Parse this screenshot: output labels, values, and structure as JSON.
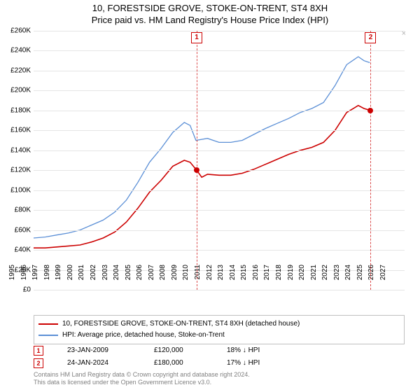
{
  "title": {
    "line1": "10, FORESTSIDE GROVE, STOKE-ON-TRENT, ST4 8XH",
    "line2": "Price paid vs. HM Land Registry's House Price Index (HPI)"
  },
  "chart": {
    "type": "line",
    "background_color": "#ffffff",
    "grid_color": "#e5e5e5",
    "axis_color": "#b0b0b0",
    "label_fontsize": 10,
    "ylim": [
      0,
      260000
    ],
    "ytick_step": 20000,
    "yticks": [
      "£0",
      "£20K",
      "£40K",
      "£60K",
      "£80K",
      "£100K",
      "£120K",
      "£140K",
      "£160K",
      "£180K",
      "£200K",
      "£220K",
      "£240K",
      "£260K"
    ],
    "xlim": [
      1995,
      2027
    ],
    "xticks": [
      1995,
      1996,
      1997,
      1998,
      1999,
      2000,
      2001,
      2002,
      2003,
      2004,
      2005,
      2006,
      2007,
      2008,
      2009,
      2010,
      2011,
      2012,
      2013,
      2014,
      2015,
      2016,
      2017,
      2018,
      2019,
      2020,
      2021,
      2022,
      2023,
      2024,
      2025,
      2026,
      2027
    ],
    "remove_icon": "×",
    "series": [
      {
        "name": "10, FORESTSIDE GROVE, STOKE-ON-TRENT, ST4 8XH (detached house)",
        "color": "#cc0000",
        "line_width": 1.6,
        "points": [
          [
            1995,
            42000
          ],
          [
            1996,
            42000
          ],
          [
            1997,
            43000
          ],
          [
            1998,
            44000
          ],
          [
            1999,
            45000
          ],
          [
            2000,
            48000
          ],
          [
            2001,
            52000
          ],
          [
            2002,
            58000
          ],
          [
            2003,
            68000
          ],
          [
            2004,
            82000
          ],
          [
            2005,
            98000
          ],
          [
            2006,
            110000
          ],
          [
            2007,
            124000
          ],
          [
            2008,
            130000
          ],
          [
            2008.5,
            128000
          ],
          [
            2009.07,
            120000
          ],
          [
            2009.5,
            113000
          ],
          [
            2010,
            116000
          ],
          [
            2011,
            115000
          ],
          [
            2012,
            115000
          ],
          [
            2013,
            117000
          ],
          [
            2014,
            121000
          ],
          [
            2015,
            126000
          ],
          [
            2016,
            131000
          ],
          [
            2017,
            136000
          ],
          [
            2018,
            140000
          ],
          [
            2019,
            143000
          ],
          [
            2020,
            148000
          ],
          [
            2021,
            160000
          ],
          [
            2022,
            178000
          ],
          [
            2023,
            185000
          ],
          [
            2023.5,
            182000
          ],
          [
            2024.07,
            180000
          ]
        ]
      },
      {
        "name": "HPI: Average price, detached house, Stoke-on-Trent",
        "color": "#5b8fd6",
        "line_width": 1.3,
        "points": [
          [
            1995,
            52000
          ],
          [
            1996,
            53000
          ],
          [
            1997,
            55000
          ],
          [
            1998,
            57000
          ],
          [
            1999,
            60000
          ],
          [
            2000,
            65000
          ],
          [
            2001,
            70000
          ],
          [
            2002,
            78000
          ],
          [
            2003,
            90000
          ],
          [
            2004,
            108000
          ],
          [
            2005,
            128000
          ],
          [
            2006,
            142000
          ],
          [
            2007,
            158000
          ],
          [
            2008,
            168000
          ],
          [
            2008.5,
            165000
          ],
          [
            2009,
            150000
          ],
          [
            2010,
            152000
          ],
          [
            2011,
            148000
          ],
          [
            2012,
            148000
          ],
          [
            2013,
            150000
          ],
          [
            2014,
            156000
          ],
          [
            2015,
            162000
          ],
          [
            2016,
            167000
          ],
          [
            2017,
            172000
          ],
          [
            2018,
            178000
          ],
          [
            2019,
            182000
          ],
          [
            2020,
            188000
          ],
          [
            2021,
            205000
          ],
          [
            2022,
            226000
          ],
          [
            2023,
            234000
          ],
          [
            2023.5,
            230000
          ],
          [
            2024,
            228000
          ]
        ]
      }
    ],
    "markers": [
      {
        "id": "1",
        "date_label": "23-JAN-2009",
        "x": 2009.07,
        "y": 120000,
        "price": "£120,000",
        "diff": "18% ↓ HPI"
      },
      {
        "id": "2",
        "date_label": "24-JAN-2024",
        "x": 2024.07,
        "y": 180000,
        "price": "£180,000",
        "diff": "17% ↓ HPI"
      }
    ]
  },
  "attribution": {
    "line1": "Contains HM Land Registry data © Crown copyright and database right 2024.",
    "line2": "This data is licensed under the Open Government Licence v3.0."
  }
}
